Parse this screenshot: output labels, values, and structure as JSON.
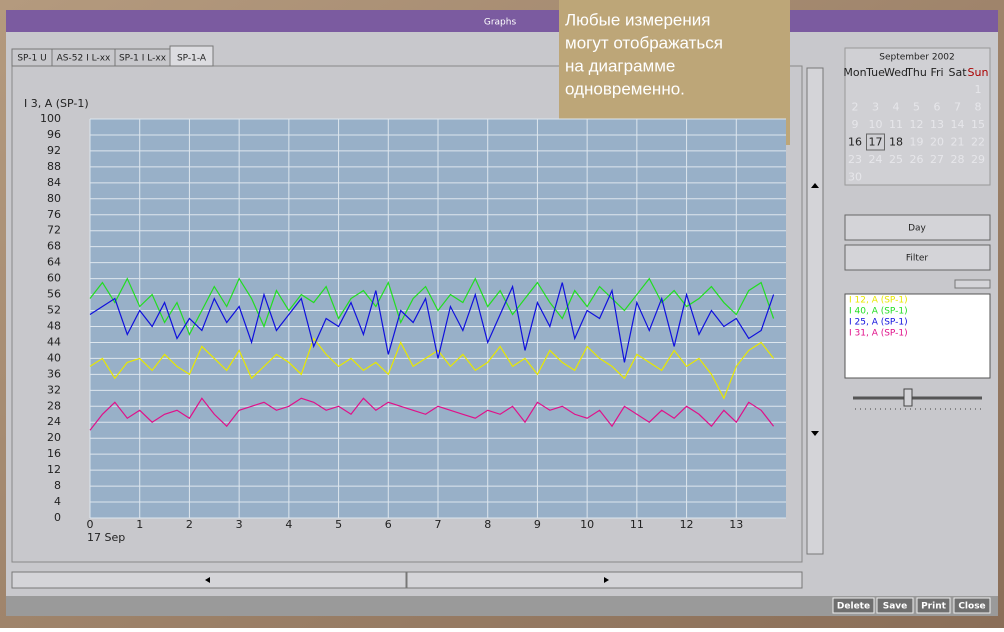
{
  "window": {
    "title": "Graphs",
    "tabs": [
      "SP-1 U",
      "AS-52 I L-xx",
      "SP-1 I L-xx",
      "SP-1-A"
    ],
    "buttons": [
      "Day",
      "Filter"
    ],
    "footer_buttons": [
      "Delete",
      "Save",
      "Print",
      "Close"
    ]
  },
  "tooltip": {
    "lines": [
      "Любые измерения",
      "могут отображаться",
      "на диаграмме",
      "одновременно."
    ]
  },
  "calendar": {
    "title": "September 2002",
    "weekdays": [
      "Mon",
      "Tue",
      "Wed",
      "Thu",
      "Fri",
      "Sat",
      "Sun"
    ],
    "days": [
      1,
      2,
      3,
      4,
      5,
      6,
      7,
      8,
      9,
      10,
      11,
      12,
      13,
      14,
      15,
      16,
      17,
      18,
      19,
      20,
      21,
      22,
      23,
      24,
      25,
      26,
      27,
      28,
      29,
      30
    ]
  },
  "chart_data": {
    "type": "line",
    "y_label": "I 3, A (SP-1)",
    "x_start_label": "17 Sep",
    "xlim": [
      0,
      14
    ],
    "xticks": [
      0,
      1,
      2,
      3,
      4,
      5,
      6,
      7,
      8,
      9,
      10,
      11,
      12,
      13
    ],
    "ylim": [
      0,
      100
    ],
    "yticks": [
      0,
      4,
      8,
      12,
      16,
      20,
      24,
      28,
      32,
      36,
      40,
      44,
      48,
      52,
      56,
      60,
      64,
      68,
      72,
      76,
      80,
      84,
      88,
      92,
      96,
      100
    ],
    "grid": true,
    "x": [
      0,
      0.25,
      0.5,
      0.75,
      1,
      1.25,
      1.5,
      1.75,
      2,
      2.25,
      2.5,
      2.75,
      3,
      3.25,
      3.5,
      3.75,
      4,
      4.25,
      4.5,
      4.75,
      5,
      5.25,
      5.5,
      5.75,
      6,
      6.25,
      6.5,
      6.75,
      7,
      7.25,
      7.5,
      7.75,
      8,
      8.25,
      8.5,
      8.75,
      9,
      9.25,
      9.5,
      9.75,
      10,
      10.25,
      10.5,
      10.75,
      11,
      11.25,
      11.5,
      11.75,
      12,
      12.25,
      12.5,
      12.75,
      13,
      13.25,
      13.5,
      13.75
    ],
    "series": [
      {
        "name": "I 12, A (SP-1)",
        "color": "#e8e800",
        "values": [
          38,
          40,
          35,
          39,
          40,
          37,
          41,
          38,
          36,
          43,
          40,
          37,
          42,
          35,
          38,
          41,
          39,
          36,
          45,
          41,
          38,
          40,
          37,
          39,
          36,
          44,
          38,
          40,
          42,
          38,
          41,
          37,
          39,
          43,
          38,
          40,
          36,
          42,
          39,
          37,
          43,
          40,
          38,
          35,
          41,
          39,
          37,
          42,
          38,
          40,
          36,
          30,
          38,
          42,
          44,
          40
        ]
      },
      {
        "name": "I 40, A (SP-1)",
        "color": "#22dd22",
        "values": [
          55,
          59,
          54,
          60,
          53,
          56,
          49,
          54,
          46,
          52,
          58,
          53,
          60,
          55,
          48,
          57,
          52,
          56,
          54,
          58,
          50,
          55,
          57,
          53,
          59,
          49,
          55,
          58,
          52,
          56,
          54,
          60,
          53,
          57,
          51,
          55,
          59,
          54,
          50,
          57,
          53,
          58,
          55,
          52,
          56,
          60,
          54,
          57,
          53,
          55,
          58,
          54,
          51,
          57,
          59,
          50
        ]
      },
      {
        "name": "I 25, A (SP-1)",
        "color": "#1010dd",
        "values": [
          51,
          53,
          55,
          46,
          52,
          48,
          54,
          45,
          50,
          47,
          55,
          49,
          53,
          44,
          56,
          47,
          51,
          55,
          43,
          50,
          48,
          54,
          46,
          57,
          41,
          52,
          49,
          55,
          40,
          53,
          47,
          56,
          44,
          51,
          58,
          42,
          54,
          48,
          59,
          45,
          52,
          50,
          57,
          39,
          54,
          47,
          55,
          43,
          56,
          46,
          52,
          48,
          50,
          45,
          47,
          56
        ]
      },
      {
        "name": "I 31, A (SP-1)",
        "color": "#e0108a",
        "values": [
          22,
          26,
          29,
          25,
          27,
          24,
          26,
          27,
          25,
          30,
          26,
          23,
          27,
          28,
          29,
          27,
          28,
          30,
          29,
          27,
          28,
          26,
          30,
          27,
          29,
          28,
          27,
          26,
          28,
          27,
          26,
          25,
          27,
          26,
          28,
          24,
          29,
          27,
          28,
          26,
          25,
          27,
          23,
          28,
          26,
          24,
          27,
          25,
          28,
          26,
          23,
          27,
          24,
          29,
          27,
          23
        ]
      }
    ]
  }
}
